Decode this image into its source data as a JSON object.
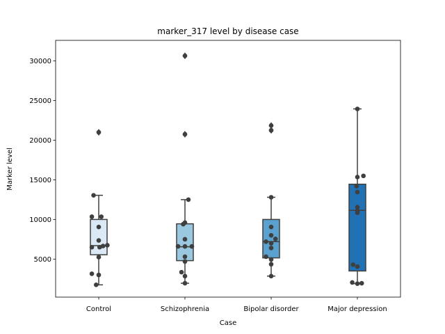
{
  "chart_data": {
    "type": "box",
    "title": "marker_317 level by disease case",
    "xlabel": "Case",
    "ylabel": "Marker level",
    "ylim": [
      200,
      32600
    ],
    "yticks": [
      5000,
      10000,
      15000,
      20000,
      25000,
      30000
    ],
    "grid": false,
    "categories": [
      "Control",
      "Schizophrenia",
      "Bipolar disorder",
      "Major depression"
    ],
    "box_colors": [
      "#dbe9f6",
      "#9ac8e0",
      "#5aa1cf",
      "#2171b5"
    ],
    "point_color": "#3f3f3f",
    "edge_color": "#3f3f3f",
    "boxes": [
      {
        "q1": 5550,
        "median": 6700,
        "q3": 10000,
        "whisker_low": 1750,
        "whisker_high": 13050,
        "outliers": [
          21000
        ]
      },
      {
        "q1": 4800,
        "median": 6550,
        "q3": 9450,
        "whisker_low": 1950,
        "whisker_high": 12500,
        "outliers": [
          30650,
          20750
        ]
      },
      {
        "q1": 5150,
        "median": 7200,
        "q3": 10000,
        "whisker_low": 2850,
        "whisker_high": 12800,
        "outliers": [
          21850,
          21250
        ]
      },
      {
        "q1": 3500,
        "median": 11150,
        "q3": 14450,
        "whisker_low": 1900,
        "whisker_high": 23950,
        "outliers": []
      }
    ],
    "points": [
      [
        {
          "y": 13050,
          "dx": -0.06
        },
        {
          "y": 10350,
          "dx": -0.08
        },
        {
          "y": 10350,
          "dx": 0.03
        },
        {
          "y": 9050,
          "dx": 0.0
        },
        {
          "y": 7350,
          "dx": 0.0
        },
        {
          "y": 6750,
          "dx": 0.1
        },
        {
          "y": 6650,
          "dx": 0.05
        },
        {
          "y": 6500,
          "dx": -0.08
        },
        {
          "y": 6500,
          "dx": 0.01
        },
        {
          "y": 5250,
          "dx": 0.0
        },
        {
          "y": 3150,
          "dx": -0.08
        },
        {
          "y": 3000,
          "dx": 0.0
        },
        {
          "y": 1750,
          "dx": -0.03
        },
        {
          "y": 21000,
          "dx": 0.0
        }
      ],
      [
        {
          "y": 12500,
          "dx": 0.04
        },
        {
          "y": 9600,
          "dx": 0.0
        },
        {
          "y": 9400,
          "dx": -0.02
        },
        {
          "y": 7500,
          "dx": 0.0
        },
        {
          "y": 6600,
          "dx": -0.08
        },
        {
          "y": 6600,
          "dx": 0.0
        },
        {
          "y": 6600,
          "dx": 0.08
        },
        {
          "y": 5300,
          "dx": 0.0
        },
        {
          "y": 4700,
          "dx": 0.0
        },
        {
          "y": 3350,
          "dx": -0.04
        },
        {
          "y": 2850,
          "dx": 0.0
        },
        {
          "y": 1950,
          "dx": 0.0
        },
        {
          "y": 30650,
          "dx": 0.0
        },
        {
          "y": 20750,
          "dx": 0.0
        }
      ],
      [
        {
          "y": 12800,
          "dx": 0.0
        },
        {
          "y": 9050,
          "dx": 0.0
        },
        {
          "y": 8000,
          "dx": 0.0
        },
        {
          "y": 7550,
          "dx": 0.05
        },
        {
          "y": 7200,
          "dx": -0.06
        },
        {
          "y": 7000,
          "dx": 0.0
        },
        {
          "y": 6400,
          "dx": 0.0
        },
        {
          "y": 5300,
          "dx": -0.06
        },
        {
          "y": 4950,
          "dx": 0.0
        },
        {
          "y": 4350,
          "dx": 0.0
        },
        {
          "y": 2850,
          "dx": 0.0
        },
        {
          "y": 21850,
          "dx": 0.0
        },
        {
          "y": 21250,
          "dx": 0.0
        }
      ],
      [
        {
          "y": 23950,
          "dx": 0.0
        },
        {
          "y": 15500,
          "dx": 0.07
        },
        {
          "y": 15350,
          "dx": 0.0
        },
        {
          "y": 14200,
          "dx": -0.01
        },
        {
          "y": 13450,
          "dx": 0.0
        },
        {
          "y": 11550,
          "dx": 0.0
        },
        {
          "y": 11100,
          "dx": 0.0
        },
        {
          "y": 10850,
          "dx": 0.0
        },
        {
          "y": 4300,
          "dx": -0.05
        },
        {
          "y": 4050,
          "dx": 0.0
        },
        {
          "y": 2050,
          "dx": -0.06
        },
        {
          "y": 1950,
          "dx": 0.05
        },
        {
          "y": 1900,
          "dx": 0.0
        }
      ]
    ]
  }
}
